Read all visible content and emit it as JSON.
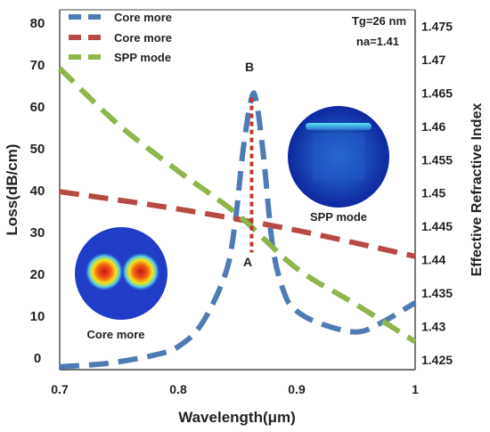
{
  "chart_data": {
    "type": "line",
    "xlabel": "Wavelength(μm)",
    "ylabel_left": "Loss(dB/cm)",
    "ylabel_right": "Effective Refractive Index",
    "xlim": [
      0.7,
      1.0
    ],
    "ylim_left": [
      -3,
      83
    ],
    "ylim_right": [
      1.4235,
      1.4775
    ],
    "x_ticks": [
      "0.7",
      "0.8",
      "0.9",
      "1"
    ],
    "y_left_ticks": [
      "0",
      "10",
      "20",
      "30",
      "40",
      "50",
      "60",
      "70",
      "80"
    ],
    "y_right_ticks": [
      "1.425",
      "1.43",
      "1.435",
      "1.44",
      "1.445",
      "1.45",
      "1.455",
      "1.46",
      "1.465",
      "1.47",
      "1.475"
    ],
    "grid": false,
    "legend_position": "top-left",
    "series": [
      {
        "name": "Core more",
        "axis": "left",
        "color": "#4f7bb5",
        "style": "dashed",
        "points": [
          [
            0.7,
            -2.3
          ],
          [
            0.74,
            -1.5
          ],
          [
            0.78,
            0.5
          ],
          [
            0.8,
            2.5
          ],
          [
            0.82,
            8
          ],
          [
            0.84,
            20
          ],
          [
            0.848,
            32
          ],
          [
            0.855,
            50
          ],
          [
            0.862,
            62
          ],
          [
            0.866,
            61
          ],
          [
            0.872,
            48
          ],
          [
            0.88,
            26
          ],
          [
            0.89,
            15
          ],
          [
            0.9,
            11
          ],
          [
            0.92,
            8
          ],
          [
            0.95,
            6
          ],
          [
            0.97,
            8
          ],
          [
            1.0,
            13
          ]
        ]
      },
      {
        "name": "Core more",
        "axis": "right",
        "color": "#b84a45",
        "style": "dashed",
        "points": [
          [
            0.7,
            1.4502
          ],
          [
            0.8,
            1.4476
          ],
          [
            0.9,
            1.4444
          ],
          [
            1.0,
            1.4405
          ]
        ]
      },
      {
        "name": "SPP mode",
        "axis": "right",
        "color": "#8fb54d",
        "style": "dashed",
        "points": [
          [
            0.7,
            1.4687
          ],
          [
            0.75,
            1.4602
          ],
          [
            0.8,
            1.4533
          ],
          [
            0.85,
            1.4468
          ],
          [
            0.9,
            1.4387
          ],
          [
            0.95,
            1.4333
          ],
          [
            1.0,
            1.4277
          ]
        ]
      }
    ],
    "annotations": {
      "tg": "Tg=26 nm",
      "na": "na=1.41",
      "point_b": "B",
      "point_a": "A",
      "inset_spp": "SPP mode",
      "inset_core": "Core more",
      "connector": {
        "x": 0.862,
        "y_from": 62,
        "y_to": 25
      }
    }
  }
}
